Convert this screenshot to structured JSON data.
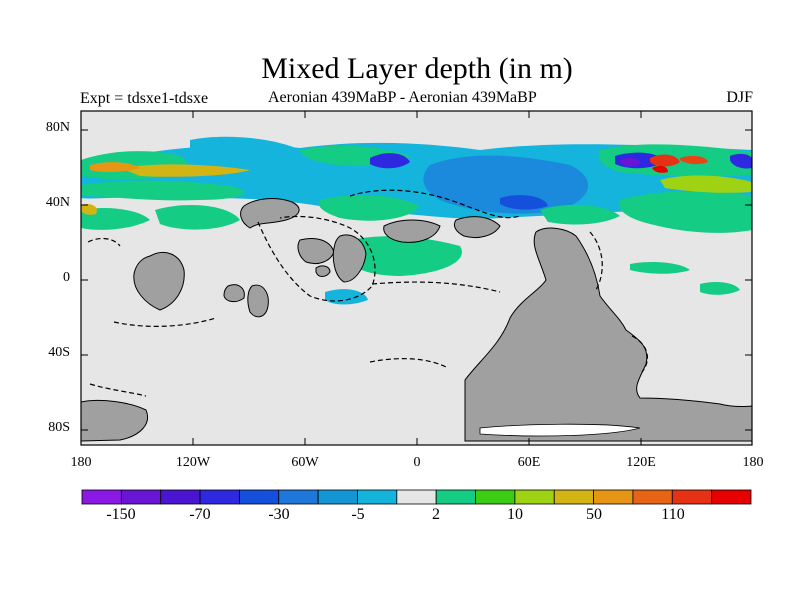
{
  "title": "Mixed Layer depth (in m)",
  "subtitle_left": "Expt = tdsxe1-tdsxe",
  "subtitle_center": "Aeronian 439MaBP - Aeronian 439MaBP",
  "subtitle_right": "DJF",
  "y_axis": {
    "labels": [
      "80N",
      "40N",
      "0",
      "40S",
      "80S"
    ]
  },
  "x_axis": {
    "labels": [
      "180",
      "120W",
      "60W",
      "0",
      "60E",
      "120E",
      "180"
    ]
  },
  "colorbar": {
    "colors": [
      "#8a19e6",
      "#6a14d6",
      "#4b14d0",
      "#2e28e0",
      "#1450dc",
      "#1e78dc",
      "#1496d6",
      "#14b4dc",
      "#e6e6e6",
      "#14cc84",
      "#3ccc14",
      "#a0d214",
      "#d2b414",
      "#e69614",
      "#e66414",
      "#e63214",
      "#e60000"
    ],
    "labels": [
      "-150",
      "-70",
      "-30",
      "-5",
      "2",
      "10",
      "50",
      "110"
    ]
  },
  "colors": {
    "ocean": "#e6e6e6",
    "land": "#a0a0a0",
    "frame": "#000000"
  }
}
